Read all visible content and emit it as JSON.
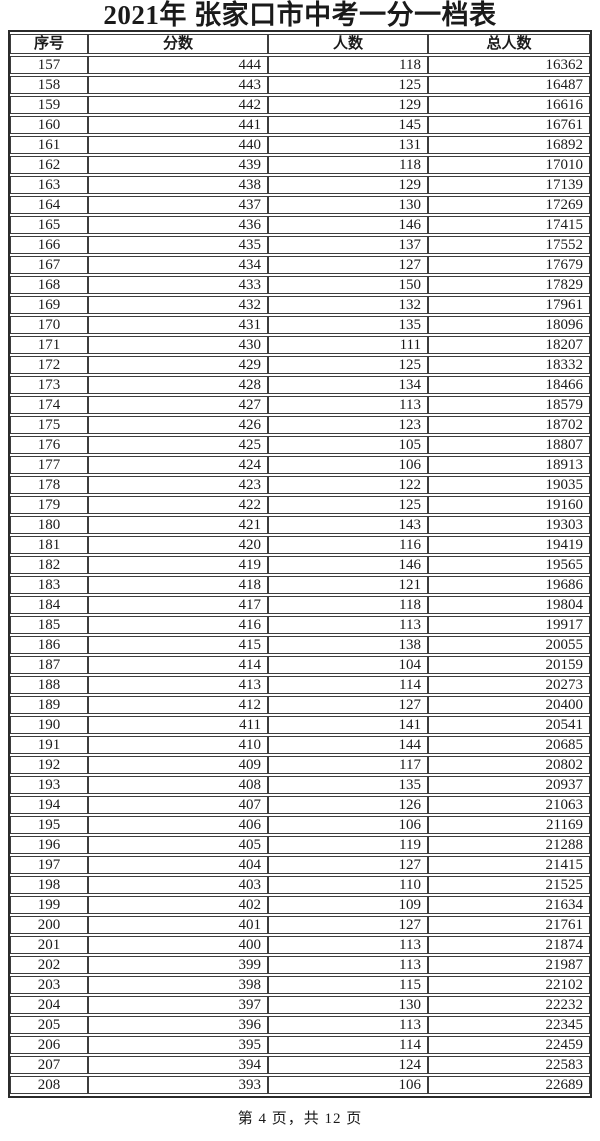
{
  "title": "2021年 张家口市中考一分一档表",
  "table": {
    "headers": [
      "序号",
      "分数",
      "人数",
      "总人数"
    ],
    "rows": [
      [
        157,
        444,
        118,
        16362
      ],
      [
        158,
        443,
        125,
        16487
      ],
      [
        159,
        442,
        129,
        16616
      ],
      [
        160,
        441,
        145,
        16761
      ],
      [
        161,
        440,
        131,
        16892
      ],
      [
        162,
        439,
        118,
        17010
      ],
      [
        163,
        438,
        129,
        17139
      ],
      [
        164,
        437,
        130,
        17269
      ],
      [
        165,
        436,
        146,
        17415
      ],
      [
        166,
        435,
        137,
        17552
      ],
      [
        167,
        434,
        127,
        17679
      ],
      [
        168,
        433,
        150,
        17829
      ],
      [
        169,
        432,
        132,
        17961
      ],
      [
        170,
        431,
        135,
        18096
      ],
      [
        171,
        430,
        111,
        18207
      ],
      [
        172,
        429,
        125,
        18332
      ],
      [
        173,
        428,
        134,
        18466
      ],
      [
        174,
        427,
        113,
        18579
      ],
      [
        175,
        426,
        123,
        18702
      ],
      [
        176,
        425,
        105,
        18807
      ],
      [
        177,
        424,
        106,
        18913
      ],
      [
        178,
        423,
        122,
        19035
      ],
      [
        179,
        422,
        125,
        19160
      ],
      [
        180,
        421,
        143,
        19303
      ],
      [
        181,
        420,
        116,
        19419
      ],
      [
        182,
        419,
        146,
        19565
      ],
      [
        183,
        418,
        121,
        19686
      ],
      [
        184,
        417,
        118,
        19804
      ],
      [
        185,
        416,
        113,
        19917
      ],
      [
        186,
        415,
        138,
        20055
      ],
      [
        187,
        414,
        104,
        20159
      ],
      [
        188,
        413,
        114,
        20273
      ],
      [
        189,
        412,
        127,
        20400
      ],
      [
        190,
        411,
        141,
        20541
      ],
      [
        191,
        410,
        144,
        20685
      ],
      [
        192,
        409,
        117,
        20802
      ],
      [
        193,
        408,
        135,
        20937
      ],
      [
        194,
        407,
        126,
        21063
      ],
      [
        195,
        406,
        106,
        21169
      ],
      [
        196,
        405,
        119,
        21288
      ],
      [
        197,
        404,
        127,
        21415
      ],
      [
        198,
        403,
        110,
        21525
      ],
      [
        199,
        402,
        109,
        21634
      ],
      [
        200,
        401,
        127,
        21761
      ],
      [
        201,
        400,
        113,
        21874
      ],
      [
        202,
        399,
        113,
        21987
      ],
      [
        203,
        398,
        115,
        22102
      ],
      [
        204,
        397,
        130,
        22232
      ],
      [
        205,
        396,
        113,
        22345
      ],
      [
        206,
        395,
        114,
        22459
      ],
      [
        207,
        394,
        124,
        22583
      ],
      [
        208,
        393,
        106,
        22689
      ]
    ]
  },
  "footer": {
    "page_text": "第 4 页，共 12 页"
  }
}
